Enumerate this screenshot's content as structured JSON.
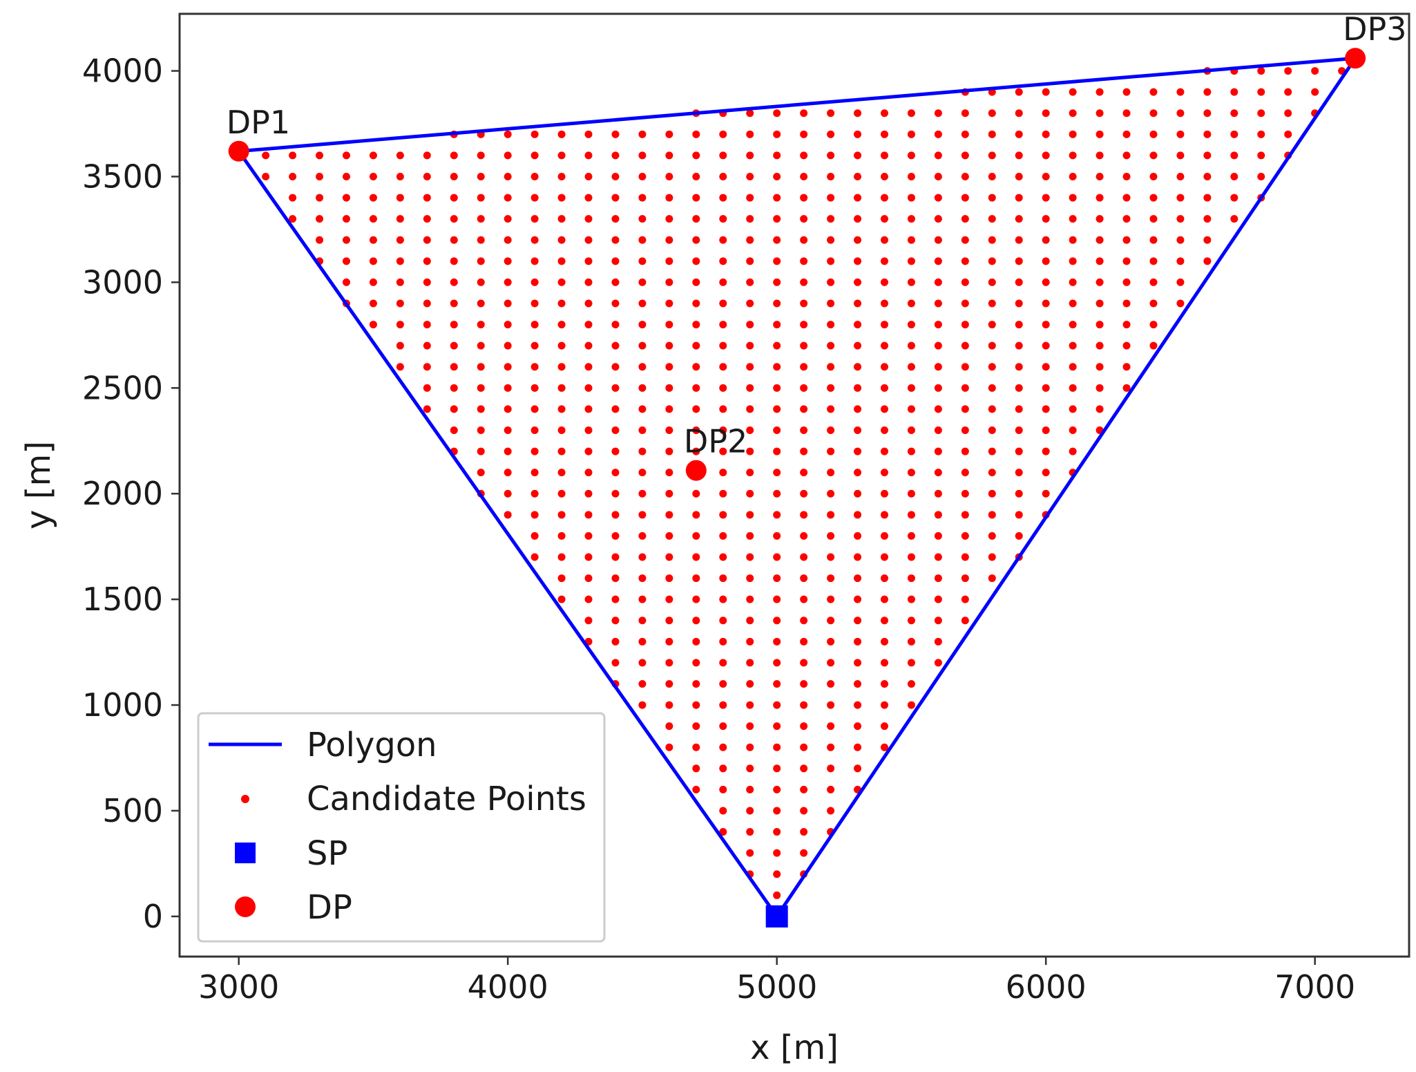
{
  "chart_data": {
    "type": "scatter",
    "title": "",
    "xlabel": "x [m]",
    "ylabel": "y [m]",
    "xlim": [
      2780,
      7350
    ],
    "ylim": [
      -190,
      4270
    ],
    "xticks": [
      3000,
      4000,
      5000,
      6000,
      7000
    ],
    "yticks": [
      0,
      500,
      1000,
      1500,
      2000,
      2500,
      3000,
      3500,
      4000
    ],
    "grid": false,
    "legend_position": "lower-left",
    "polygon": {
      "name": "Polygon",
      "color": "#0000ff",
      "vertices": [
        [
          3000,
          3620
        ],
        [
          7150,
          4060
        ],
        [
          5000,
          0
        ],
        [
          3000,
          3620
        ]
      ]
    },
    "candidate_points": {
      "name": "Candidate Points",
      "color": "#ff0000",
      "grid_spacing_x": 100,
      "grid_spacing_y": 100,
      "note_region": "regular 100 m grid clipped to polygon interior"
    },
    "source_point": {
      "name": "SP",
      "color": "#0000ff",
      "x": 5000,
      "y": 0
    },
    "demand_points": {
      "name": "DP",
      "color": "#ff0000",
      "points": [
        {
          "label": "DP1",
          "x": 3000,
          "y": 3620
        },
        {
          "label": "DP2",
          "x": 4700,
          "y": 2110
        },
        {
          "label": "DP3",
          "x": 7150,
          "y": 4060
        }
      ]
    }
  }
}
